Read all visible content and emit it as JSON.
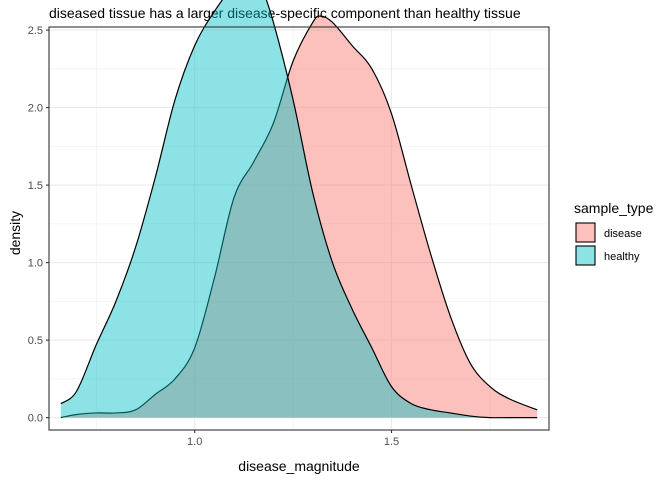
{
  "chart_data": {
    "type": "area",
    "title": "diseased tissue has a larger disease-specific component than healthy tissue",
    "xlabel": "disease_magnitude",
    "ylabel": "density",
    "xlim": [
      0.63,
      1.9
    ],
    "ylim": [
      -0.08,
      2.52
    ],
    "x_ticks": [
      1.0,
      1.5
    ],
    "x_tick_labels": [
      "1.0",
      "1.5"
    ],
    "y_ticks": [
      0.0,
      0.5,
      1.0,
      1.5,
      2.0,
      2.5
    ],
    "y_tick_labels": [
      "0.0",
      "0.5",
      "1.0",
      "1.5",
      "2.0",
      "2.5"
    ],
    "grid": true,
    "legend": {
      "title": "sample_type",
      "placement": "right"
    },
    "series": [
      {
        "name": "disease",
        "color": "#F8766D",
        "x": [
          0.66,
          0.7,
          0.75,
          0.8,
          0.85,
          0.9,
          0.95,
          1.0,
          1.05,
          1.1,
          1.15,
          1.2,
          1.25,
          1.3,
          1.32,
          1.35,
          1.4,
          1.45,
          1.5,
          1.55,
          1.6,
          1.65,
          1.7,
          1.75,
          1.8,
          1.87
        ],
        "y": [
          0.0,
          0.02,
          0.03,
          0.03,
          0.05,
          0.15,
          0.25,
          0.45,
          0.9,
          1.42,
          1.65,
          1.9,
          2.3,
          2.55,
          2.59,
          2.55,
          2.4,
          2.25,
          1.96,
          1.5,
          1.05,
          0.65,
          0.35,
          0.2,
          0.12,
          0.05
        ]
      },
      {
        "name": "healthy",
        "color": "#00BFC4",
        "x": [
          0.66,
          0.7,
          0.75,
          0.8,
          0.85,
          0.9,
          0.95,
          1.0,
          1.05,
          1.1,
          1.15,
          1.17,
          1.2,
          1.25,
          1.3,
          1.35,
          1.4,
          1.45,
          1.5,
          1.55,
          1.6,
          1.65,
          1.7,
          1.75,
          1.8,
          1.87
        ],
        "y": [
          0.09,
          0.17,
          0.47,
          0.75,
          1.1,
          1.55,
          2.05,
          2.4,
          2.62,
          2.78,
          2.82,
          2.77,
          2.55,
          2.05,
          1.45,
          1.0,
          0.7,
          0.45,
          0.2,
          0.09,
          0.05,
          0.03,
          0.01,
          0.0,
          0.0,
          0.0
        ]
      }
    ]
  }
}
